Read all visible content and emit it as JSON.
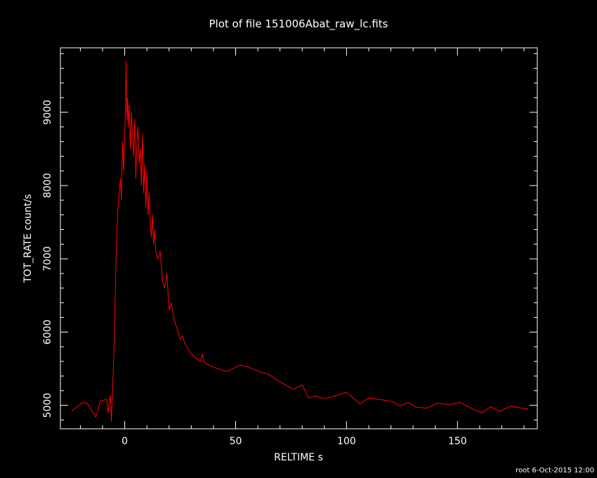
{
  "chart_data": {
    "type": "line",
    "title": "Plot of file 151006Abat_raw_lc.fits",
    "xlabel": "RELTIME  s",
    "ylabel": "TOT_RATE  count/s",
    "xlim": [
      -29,
      186
    ],
    "ylim": [
      4680,
      9880
    ],
    "x_ticks": [
      "0",
      "50",
      "100",
      "150"
    ],
    "y_ticks": [
      "5000",
      "6000",
      "7000",
      "8000",
      "9000"
    ],
    "grid": false,
    "line_color": "#ff0000",
    "series": [
      {
        "x": [
          -24,
          -19,
          -17,
          -13,
          -11,
          -8,
          -7.5,
          -6.5,
          -6,
          -5.5,
          -5,
          -4.5,
          -4,
          -3.5,
          -3,
          -2.5,
          -2,
          -1.5,
          -1,
          -0.5,
          0,
          0.3,
          0.6,
          1,
          1.3,
          1.6,
          2,
          2.5,
          3,
          3.5,
          4,
          4.5,
          5,
          5.5,
          6,
          6.5,
          7,
          7.5,
          8,
          8.5,
          9,
          9.5,
          10,
          10.5,
          11,
          11.5,
          12,
          12.5,
          13,
          13.5,
          14,
          15,
          16,
          17,
          18,
          19,
          20,
          21,
          22,
          23,
          24,
          25,
          26,
          27,
          28,
          29,
          30,
          31,
          32,
          33,
          34,
          35,
          36,
          40,
          46,
          52,
          56,
          60,
          65,
          70,
          76,
          80,
          83,
          86,
          90,
          95,
          100,
          106,
          110,
          115,
          121,
          124,
          128,
          131,
          136,
          141,
          146,
          151,
          157,
          161,
          165,
          169,
          174,
          179,
          182
        ],
        "y": [
          4920,
          5040,
          5030,
          4840,
          5060,
          5080,
          4900,
          5140,
          4780,
          5200,
          5600,
          6200,
          6900,
          7400,
          7700,
          7900,
          8100,
          7800,
          8600,
          8200,
          8700,
          9000,
          9700,
          8900,
          9200,
          8800,
          9100,
          8500,
          9000,
          8700,
          8400,
          8900,
          8100,
          8600,
          8800,
          8300,
          8500,
          8000,
          8700,
          7900,
          8300,
          7700,
          8200,
          7600,
          7900,
          7500,
          7300,
          7600,
          7200,
          7400,
          7100,
          7000,
          7100,
          6700,
          6600,
          6800,
          6300,
          6400,
          6200,
          6100,
          6000,
          5900,
          5950,
          5850,
          5800,
          5750,
          5700,
          5680,
          5650,
          5620,
          5600,
          5700,
          5580,
          5520,
          5460,
          5550,
          5520,
          5470,
          5420,
          5320,
          5220,
          5280,
          5100,
          5130,
          5090,
          5130,
          5180,
          5020,
          5100,
          5080,
          5050,
          4990,
          5040,
          4980,
          4960,
          5030,
          5010,
          5040,
          4950,
          4900,
          4980,
          4920,
          4990,
          4960,
          4950
        ]
      }
    ]
  },
  "footer": {
    "text": "root  6-Oct-2015 12:00"
  }
}
